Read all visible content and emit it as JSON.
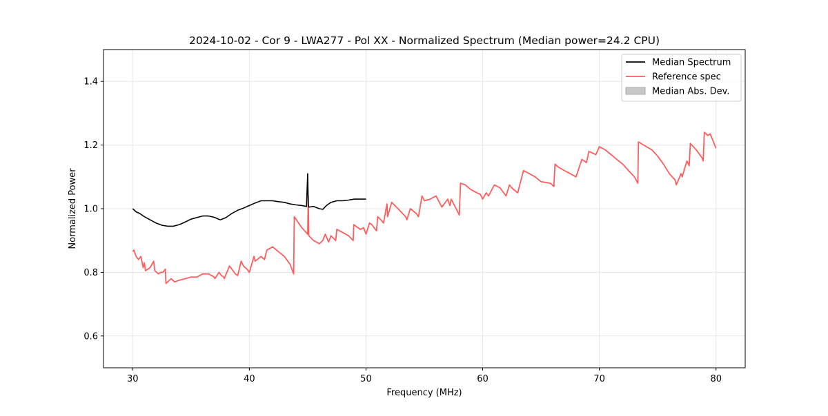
{
  "chart_data": {
    "type": "line",
    "title": "2024-10-02 - Cor 9 - LWA277 - Pol XX - Normalized Spectrum (Median power=24.2 CPU)",
    "xlabel": "Frequency (MHz)",
    "ylabel": "Normalized Power",
    "xlim": [
      27.5,
      82.5
    ],
    "ylim": [
      0.5,
      1.5
    ],
    "xticks": [
      30,
      40,
      50,
      60,
      70,
      80
    ],
    "yticks": [
      0.6,
      0.8,
      1.0,
      1.2,
      1.4
    ],
    "xtick_labels": [
      "30",
      "40",
      "50",
      "60",
      "70",
      "80"
    ],
    "ytick_labels": [
      "0.6",
      "0.8",
      "1.0",
      "1.2",
      "1.4"
    ],
    "grid": true,
    "legend_position": "top-right",
    "series": [
      {
        "name": "Median Spectrum",
        "color": "#000000",
        "x": [
          30.0,
          30.3,
          30.6,
          31.0,
          31.5,
          32.0,
          32.5,
          33.0,
          33.5,
          34.0,
          34.5,
          35.0,
          35.5,
          36.0,
          36.5,
          37.0,
          37.5,
          38.0,
          38.5,
          39.0,
          39.5,
          40.0,
          40.5,
          41.0,
          41.5,
          42.0,
          42.5,
          43.0,
          43.5,
          44.0,
          44.5,
          44.9,
          45.0,
          45.05,
          45.1,
          45.5,
          46.0,
          46.3,
          46.6,
          47.0,
          47.5,
          48.0,
          48.5,
          49.0,
          49.5,
          50.0
        ],
        "values": [
          1.0,
          0.99,
          0.985,
          0.975,
          0.965,
          0.955,
          0.948,
          0.945,
          0.945,
          0.95,
          0.958,
          0.967,
          0.972,
          0.977,
          0.977,
          0.973,
          0.965,
          0.972,
          0.985,
          0.995,
          1.002,
          1.01,
          1.018,
          1.025,
          1.025,
          1.025,
          1.022,
          1.02,
          1.015,
          1.012,
          1.01,
          1.007,
          1.11,
          1.01,
          1.005,
          1.007,
          1.0,
          0.998,
          1.01,
          1.02,
          1.025,
          1.025,
          1.027,
          1.03,
          1.03,
          1.03
        ]
      },
      {
        "name": "Reference spec",
        "color": "#ff5c5c",
        "x": [
          30.0,
          30.1,
          30.3,
          30.5,
          30.7,
          30.9,
          31.0,
          31.1,
          31.3,
          31.5,
          31.8,
          31.9,
          32.2,
          32.4,
          32.6,
          32.8,
          32.85,
          33.0,
          33.3,
          33.6,
          34.0,
          34.5,
          35.0,
          35.5,
          36.0,
          36.5,
          37.0,
          37.05,
          37.4,
          37.6,
          37.8,
          37.85,
          38.3,
          38.6,
          38.8,
          39.0,
          39.3,
          39.5,
          39.8,
          40.0,
          40.4,
          40.5,
          41.0,
          41.3,
          41.5,
          42.0,
          42.5,
          43.0,
          43.5,
          43.8,
          43.85,
          44.5,
          45.0,
          45.05,
          45.1,
          45.5,
          46.0,
          46.3,
          46.5,
          46.8,
          47.0,
          47.4,
          47.5,
          48.0,
          48.5,
          48.9,
          48.95,
          49.5,
          49.8,
          50.0,
          50.3,
          50.5,
          50.9,
          51.0,
          51.4,
          51.5,
          51.8,
          51.85,
          52.2,
          53.0,
          53.4,
          53.5,
          53.8,
          54.3,
          54.5,
          54.8,
          55.0,
          55.5,
          56.0,
          56.5,
          57.0,
          57.2,
          57.3,
          58.0,
          58.1,
          58.5,
          59.0,
          59.5,
          59.8,
          60.0,
          60.3,
          60.5,
          61.0,
          61.5,
          61.8,
          62.0,
          62.3,
          62.5,
          63.0,
          63.5,
          64.0,
          64.5,
          65.0,
          65.8,
          66.1,
          66.2,
          66.5,
          67.0,
          67.5,
          68.0,
          68.5,
          68.9,
          69.1,
          69.7,
          70.0,
          70.5,
          71.0,
          71.5,
          72.0,
          72.5,
          73.0,
          73.3,
          73.35,
          73.8,
          74.5,
          75.0,
          75.5,
          76.0,
          76.5,
          76.6,
          77.0,
          77.1,
          77.5,
          77.7,
          77.8,
          78.3,
          78.8,
          78.9,
          79.0,
          79.3,
          79.5,
          80.0
        ],
        "values": [
          0.865,
          0.87,
          0.85,
          0.84,
          0.85,
          0.815,
          0.83,
          0.805,
          0.81,
          0.815,
          0.835,
          0.805,
          0.795,
          0.8,
          0.8,
          0.81,
          0.765,
          0.77,
          0.78,
          0.77,
          0.775,
          0.78,
          0.785,
          0.785,
          0.795,
          0.795,
          0.785,
          0.78,
          0.8,
          0.79,
          0.785,
          0.78,
          0.82,
          0.805,
          0.795,
          0.79,
          0.835,
          0.82,
          0.81,
          0.8,
          0.85,
          0.835,
          0.85,
          0.84,
          0.87,
          0.88,
          0.865,
          0.85,
          0.825,
          0.795,
          0.975,
          0.94,
          0.92,
          1.04,
          0.915,
          0.9,
          0.89,
          0.9,
          0.92,
          0.895,
          0.915,
          0.9,
          0.935,
          0.925,
          0.915,
          0.9,
          0.95,
          0.935,
          0.94,
          0.92,
          0.955,
          0.95,
          0.93,
          0.975,
          0.96,
          0.955,
          1.015,
          0.975,
          1.02,
          0.99,
          0.975,
          0.965,
          1.0,
          0.985,
          0.975,
          1.04,
          1.025,
          1.03,
          1.04,
          1.005,
          1.03,
          1.01,
          1.03,
          0.98,
          1.08,
          1.075,
          1.06,
          1.05,
          1.045,
          1.03,
          1.05,
          1.04,
          1.075,
          1.065,
          1.05,
          1.04,
          1.075,
          1.065,
          1.05,
          1.12,
          1.11,
          1.1,
          1.085,
          1.08,
          1.07,
          1.14,
          1.13,
          1.12,
          1.11,
          1.1,
          1.155,
          1.145,
          1.18,
          1.17,
          1.195,
          1.185,
          1.17,
          1.155,
          1.14,
          1.12,
          1.1,
          1.08,
          1.21,
          1.2,
          1.185,
          1.165,
          1.14,
          1.11,
          1.09,
          1.075,
          1.11,
          1.1,
          1.15,
          1.135,
          1.205,
          1.185,
          1.16,
          1.15,
          1.24,
          1.23,
          1.235,
          1.19
        ]
      }
    ],
    "legend": [
      {
        "label": "Median Spectrum",
        "kind": "line",
        "color": "#000000"
      },
      {
        "label": "Reference spec",
        "kind": "line",
        "color": "#ff5c5c"
      },
      {
        "label": "Median Abs. Dev.",
        "kind": "patch",
        "color": "#c8c8c8"
      }
    ]
  }
}
